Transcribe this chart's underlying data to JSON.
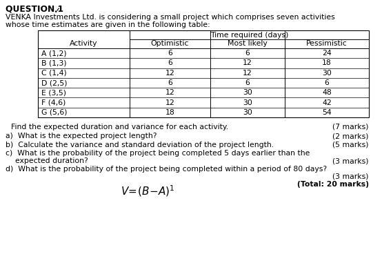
{
  "title": "QUESTION 1",
  "checkmark": "✓",
  "intro_line1": "VENKA Investments Ltd. is considering a small project which comprises seven activities",
  "intro_line2": "whose time estimates are given in the following table:",
  "table_header_main": "Time required (days)",
  "table_col_headers": [
    "Activity",
    "Optimistic",
    "Most likely",
    "Pessimistic"
  ],
  "table_rows": [
    [
      "A (1,2)",
      "6",
      "6",
      "24"
    ],
    [
      "B (1,3)",
      "6",
      "12",
      "18"
    ],
    [
      "C (1,4)",
      "12",
      "12",
      "30"
    ],
    [
      "D (2,5)",
      "6",
      "6",
      "6"
    ],
    [
      "E (3,5)",
      "12",
      "30",
      "48"
    ],
    [
      "F (4,6)",
      "12",
      "30",
      "42"
    ],
    [
      "G (5,6)",
      "18",
      "30",
      "54"
    ]
  ],
  "q0_text": "Find the expected duration and variance for each activity.",
  "q0_marks": "(7 marks)",
  "qa_text": "a)  What is the expected project length?",
  "qa_marks": "(2 marks)",
  "qb_text": "b)  Calculate the variance and standard deviation of the project length.",
  "qb_marks": "(5 marks)",
  "qc_text": "c)  What is the probability of the project being completed 5 days earlier than the",
  "qc_text2": "    expected duration?",
  "qc_marks": "(3 marks)",
  "qd_text": "d)  What is the probability of the project being completed within a period of 80 days?",
  "qd_marks": "(3 marks)",
  "total_marks": "(Total: 20 marks)",
  "bg_color": "#ffffff",
  "text_color": "#000000"
}
